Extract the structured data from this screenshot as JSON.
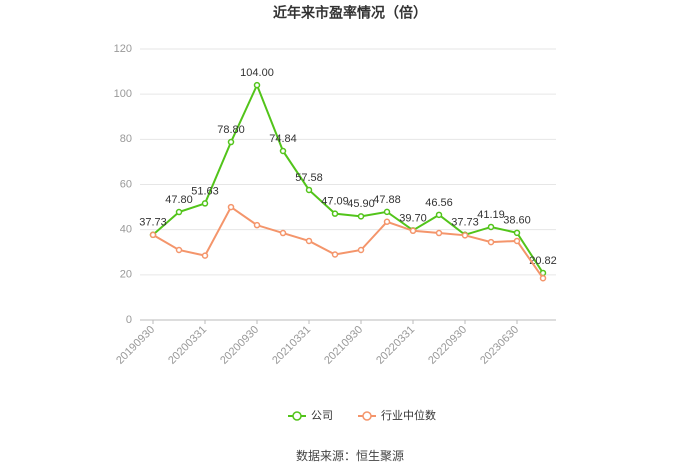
{
  "chart_data": {
    "type": "line",
    "title": "近年来市盈率情况（倍）",
    "categories": [
      "20190930",
      null,
      "20200331",
      null,
      "20200930",
      null,
      "20210331",
      null,
      "20210930",
      null,
      "20220331",
      null,
      "20220930",
      null,
      "20230630",
      null
    ],
    "series": [
      {
        "name": "公司",
        "color": "#52c41a",
        "values": [
          37.73,
          47.8,
          51.63,
          78.8,
          104.0,
          74.84,
          57.58,
          47.09,
          45.9,
          47.88,
          39.7,
          46.56,
          37.73,
          41.19,
          38.6,
          20.82
        ],
        "value_labels": [
          "37.73",
          "47.80",
          "51.63",
          "78.80",
          "104.00",
          "74.84",
          "57.58",
          "47.09",
          "45.90",
          "47.88",
          "39.70",
          "46.56",
          "37.73",
          "41.19",
          "38.60",
          "20.82"
        ]
      },
      {
        "name": "行业中位数",
        "color": "#f4956b",
        "values": [
          37.7,
          31,
          28.5,
          50,
          42,
          38.5,
          35,
          29,
          31,
          43.5,
          39.5,
          38.5,
          37.5,
          34.5,
          35,
          18.5
        ]
      }
    ],
    "ylim": [
      0,
      120
    ],
    "yticks": [
      0,
      20,
      40,
      60,
      80,
      100,
      120
    ],
    "grid": true,
    "source": "数据来源：恒生聚源"
  }
}
